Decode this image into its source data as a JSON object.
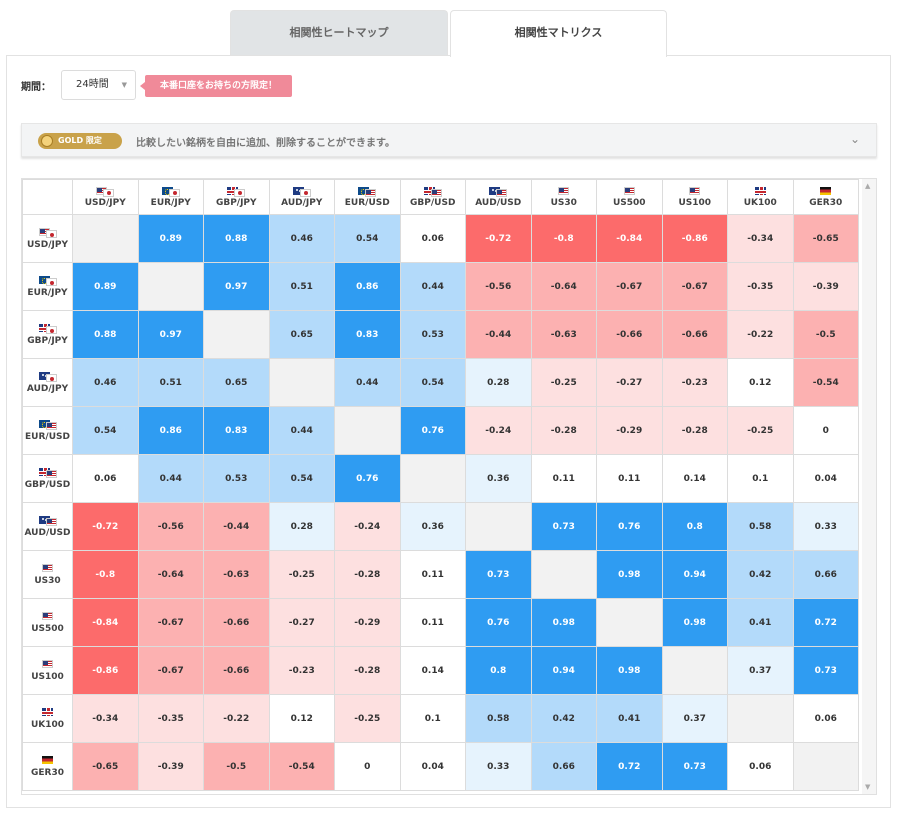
{
  "tabs": [
    {
      "label": "相関性ヒートマップ",
      "active": false
    },
    {
      "label": "相関性マトリクス",
      "active": true
    }
  ],
  "period": {
    "label": "期間：",
    "selected": "24時間"
  },
  "promo": {
    "text": "本番口座をお持ちの方限定！"
  },
  "gold_bar": {
    "badge": "GOLD 限定",
    "text": "比較したい銘柄を自由に追加、削除することができます。"
  },
  "colors": {
    "strong_pos": "#2f9cf2",
    "mid_pos": "#b3dafa",
    "weak_pos": "#e6f3fd",
    "strong_neg": "#fc6b6b",
    "mid_neg": "#fcb1b1",
    "weak_neg": "#fde0e0",
    "diag": "#f2f2f2",
    "neutral": "#ffffff"
  },
  "matrix": {
    "symbols": [
      {
        "name": "USD/JPY",
        "flags": [
          "us",
          "jp"
        ]
      },
      {
        "name": "EUR/JPY",
        "flags": [
          "eu",
          "jp"
        ]
      },
      {
        "name": "GBP/JPY",
        "flags": [
          "gb",
          "jp"
        ]
      },
      {
        "name": "AUD/JPY",
        "flags": [
          "au",
          "jp"
        ]
      },
      {
        "name": "EUR/USD",
        "flags": [
          "eu",
          "us"
        ]
      },
      {
        "name": "GBP/USD",
        "flags": [
          "gb",
          "us"
        ]
      },
      {
        "name": "AUD/USD",
        "flags": [
          "au",
          "us"
        ]
      },
      {
        "name": "US30",
        "flags": [
          "us"
        ]
      },
      {
        "name": "US500",
        "flags": [
          "us"
        ]
      },
      {
        "name": "US100",
        "flags": [
          "us"
        ]
      },
      {
        "name": "UK100",
        "flags": [
          "gb"
        ]
      },
      {
        "name": "GER30",
        "flags": [
          "de"
        ]
      }
    ],
    "values": [
      [
        null,
        "0.89",
        "0.88",
        "0.46",
        "0.54",
        "0.06",
        "-0.72",
        "-0.8",
        "-0.84",
        "-0.86",
        "-0.34",
        "-0.65"
      ],
      [
        "0.89",
        null,
        "0.97",
        "0.51",
        "0.86",
        "0.44",
        "-0.56",
        "-0.64",
        "-0.67",
        "-0.67",
        "-0.35",
        "-0.39"
      ],
      [
        "0.88",
        "0.97",
        null,
        "0.65",
        "0.83",
        "0.53",
        "-0.44",
        "-0.63",
        "-0.66",
        "-0.66",
        "-0.22",
        "-0.5"
      ],
      [
        "0.46",
        "0.51",
        "0.65",
        null,
        "0.44",
        "0.54",
        "0.28",
        "-0.25",
        "-0.27",
        "-0.23",
        "0.12",
        "-0.54"
      ],
      [
        "0.54",
        "0.86",
        "0.83",
        "0.44",
        null,
        "0.76",
        "-0.24",
        "-0.28",
        "-0.29",
        "-0.28",
        "-0.25",
        "0"
      ],
      [
        "0.06",
        "0.44",
        "0.53",
        "0.54",
        "0.76",
        null,
        "0.36",
        "0.11",
        "0.11",
        "0.14",
        "0.1",
        "0.04"
      ],
      [
        "-0.72",
        "-0.56",
        "-0.44",
        "0.28",
        "-0.24",
        "0.36",
        null,
        "0.73",
        "0.76",
        "0.8",
        "0.58",
        "0.33"
      ],
      [
        "-0.8",
        "-0.64",
        "-0.63",
        "-0.25",
        "-0.28",
        "0.11",
        "0.73",
        null,
        "0.98",
        "0.94",
        "0.42",
        "0.66"
      ],
      [
        "-0.84",
        "-0.67",
        "-0.66",
        "-0.27",
        "-0.29",
        "0.11",
        "0.76",
        "0.98",
        null,
        "0.98",
        "0.41",
        "0.72"
      ],
      [
        "-0.86",
        "-0.67",
        "-0.66",
        "-0.23",
        "-0.28",
        "0.14",
        "0.8",
        "0.94",
        "0.98",
        null,
        "0.37",
        "0.73"
      ],
      [
        "-0.34",
        "-0.35",
        "-0.22",
        "0.12",
        "-0.25",
        "0.1",
        "0.58",
        "0.42",
        "0.41",
        "0.37",
        null,
        "0.06"
      ],
      [
        "-0.65",
        "-0.39",
        "-0.5",
        "-0.54",
        "0",
        "0.04",
        "0.33",
        "0.66",
        "0.72",
        "0.73",
        "0.06",
        null
      ]
    ]
  }
}
